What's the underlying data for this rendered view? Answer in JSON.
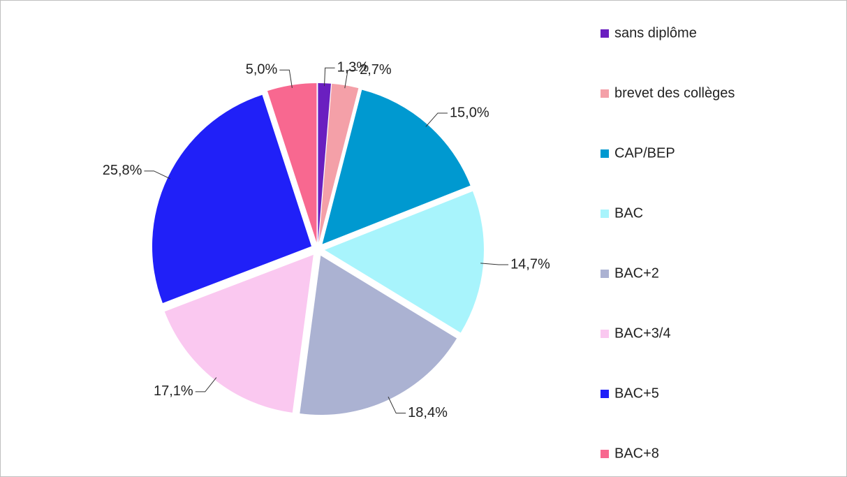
{
  "chart_data": {
    "type": "pie",
    "categories": [
      "sans diplôme",
      "brevet des collèges",
      "CAP/BEP",
      "BAC",
      "BAC+2",
      "BAC+3/4",
      "BAC+5",
      "BAC+8"
    ],
    "values": [
      1.3,
      2.7,
      15.0,
      14.7,
      18.4,
      17.1,
      25.8,
      5.0
    ],
    "value_labels": [
      "1,3%",
      "2,7%",
      "15,0%",
      "14,7%",
      "18,4%",
      "17,1%",
      "25,8%",
      "5,0%"
    ],
    "colors": [
      "#6a1fc0",
      "#f4a0a8",
      "#0099d0",
      "#a8f4fc",
      "#abb2d2",
      "#fac8f0",
      "#2020f8",
      "#f86890"
    ],
    "legend": "right"
  }
}
